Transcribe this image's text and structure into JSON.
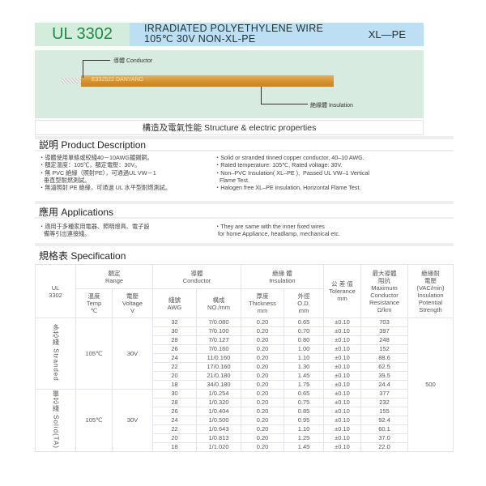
{
  "header": {
    "model": "UL 3302",
    "title_line1": "IRRADIATED POLYETHYLENE WIRE",
    "title_line2": "105℃ 30V  NON-XL-PE",
    "code": "XL—PE"
  },
  "wire": {
    "print": "E332522 DANYANG",
    "conductor_label": "導體 Conductor",
    "insulation_label": "絶緣體 Insulation"
  },
  "structure_heading": "構造及電氣性能  Structure & electric properties",
  "description": {
    "heading": "説明 Product  Description",
    "zh": "・導體使用單條或絞綫40－10AWG鍍錫銅。\n・額定溫度：105℃，額定電壓：30V。\n・無 PVC 絶緣（照射PE），可通過UL VW－1\n   垂直型耐燃測試。\n・無滷照射 PE 絶緣，可通過 UL 水平型耐燃測試。",
    "en": "・Solid or stranded tinned copper conductor, 40–10 AWG.\n・Rated temperature: 105℃, Rated voltage: 30V.\n・Non–PVC Insulation( XL–PE ),  Passed UL VW–1 Vertical\n   Flame Test.\n・Halogen free XL–PE insulation, Horizontal Flame Test."
  },
  "applications": {
    "heading": "應用 Applications",
    "zh": "・適用于多種家用電器、照明燈具、電子設\n   備等引出連接綫。",
    "en": "・They are same with the inner fixed wires\n  for home Appliance, headlamp, mechanical etc."
  },
  "spec": {
    "heading": "規格表 Specification",
    "headers": {
      "ul": "UL\n3302",
      "range": "額定\nRange",
      "temp": "溫度\nTemp\n℃",
      "voltage": "電壓\nVoltage\nV",
      "conductor": "導體\nConductor",
      "awg": "綫號\nAWG",
      "no": "構成\nNO./mm",
      "insulation": "絶緣 體\nInsulation",
      "thickness": "厚度\nThickness\nmm",
      "od": "外徑\nO.D.\nmm",
      "tolerance": "公 差 值\nTolerance\nmm",
      "resistance": "最大導體\n阻抗\nMaximum\nConductor\nResistance\nΩ/km",
      "strength": "絶緣耐\n電壓\n(VAC/min)\nInsulation\nPotential\nStrength"
    },
    "strength_value": "500",
    "groups": [
      {
        "name": "多芯綫 Stranded",
        "temp": "105℃",
        "voltage": "30V",
        "rows": [
          [
            "32",
            "7/0.080",
            "0.20",
            "0.65",
            "±0.10",
            "703"
          ],
          [
            "30",
            "7/0.100",
            "0.20",
            "0.70",
            "±0.10",
            "397"
          ],
          [
            "28",
            "7/0.127",
            "0.20",
            "0.80",
            "±0.10",
            "248"
          ],
          [
            "26",
            "7/0.160",
            "0.20",
            "1.00",
            "±0.10",
            "152"
          ],
          [
            "24",
            "11/0.160",
            "0.20",
            "1.10",
            "±0.10",
            "88.6"
          ],
          [
            "22",
            "17/0.160",
            "0.20",
            "1.30",
            "±0.10",
            "62.5"
          ],
          [
            "20",
            "21/0.180",
            "0.20",
            "1.45",
            "±0.10",
            "39.5"
          ],
          [
            "18",
            "34/0.180",
            "0.20",
            "1.75",
            "±0.10",
            "24.4"
          ]
        ]
      },
      {
        "name": "單芯綫 Solid(TA)",
        "temp": "105℃",
        "voltage": "30V",
        "rows": [
          [
            "30",
            "1/0.254",
            "0.20",
            "0.65",
            "±0.10",
            "377"
          ],
          [
            "28",
            "1/0.320",
            "0.20",
            "0.75",
            "±0.10",
            "232"
          ],
          [
            "26",
            "1/0.404",
            "0.20",
            "0.85",
            "±0.10",
            "155"
          ],
          [
            "24",
            "1/0.500",
            "0.20",
            "0.95",
            "±0.10",
            "92.4"
          ],
          [
            "22",
            "1/0.643",
            "0.20",
            "1.10",
            "±0.10",
            "60.1"
          ],
          [
            "20",
            "1/0.813",
            "0.20",
            "1.25",
            "±0.10",
            "37.0"
          ],
          [
            "18",
            "1/1.020",
            "0.20",
            "1.45",
            "±0.10",
            "22.0"
          ]
        ]
      }
    ]
  }
}
